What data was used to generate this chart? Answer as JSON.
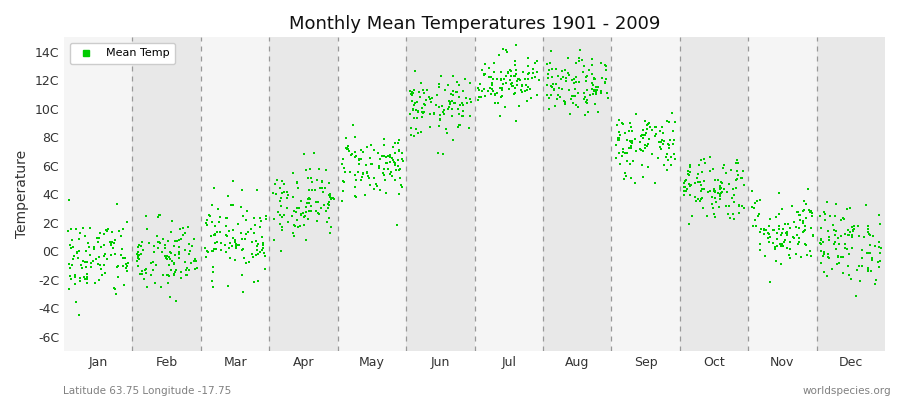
{
  "title": "Monthly Mean Temperatures 1901 - 2009",
  "ylabel": "Temperature",
  "xlabel_labels": [
    "Jan",
    "Feb",
    "Mar",
    "Apr",
    "May",
    "Jun",
    "Jul",
    "Aug",
    "Sep",
    "Oct",
    "Nov",
    "Dec"
  ],
  "ytick_labels": [
    "-6C",
    "-4C",
    "-2C",
    "0C",
    "2C",
    "4C",
    "6C",
    "8C",
    "10C",
    "12C",
    "14C"
  ],
  "ytick_values": [
    -6,
    -4,
    -2,
    0,
    2,
    4,
    6,
    8,
    10,
    12,
    14
  ],
  "ylim": [
    -7,
    15
  ],
  "dot_color": "#00cc00",
  "background_color": "#efefef",
  "band_light": "#f5f5f5",
  "band_dark": "#e8e8e8",
  "footer_left": "Latitude 63.75 Longitude -17.75",
  "footer_right": "worldspecies.org",
  "legend_label": "Mean Temp",
  "n_years": 109,
  "monthly_means": [
    -0.5,
    -0.5,
    1.0,
    3.5,
    6.0,
    10.0,
    12.0,
    11.5,
    7.5,
    4.5,
    1.5,
    0.5
  ],
  "monthly_stds": [
    1.5,
    1.4,
    1.4,
    1.3,
    1.2,
    1.1,
    1.0,
    1.0,
    1.2,
    1.2,
    1.3,
    1.4
  ],
  "seed": 42
}
